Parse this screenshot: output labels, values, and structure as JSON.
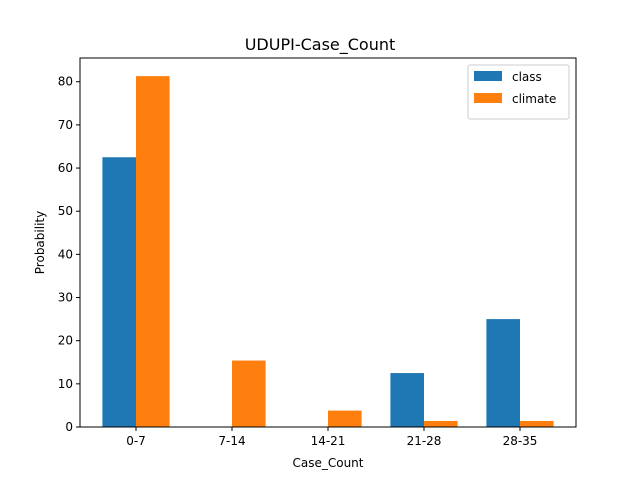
{
  "chart_data": {
    "type": "bar",
    "title": "UDUPI-Case_Count",
    "xlabel": "Case_Count",
    "ylabel": "Probability",
    "categories": [
      "0-7",
      "7-14",
      "14-21",
      "21-28",
      "28-35"
    ],
    "series": [
      {
        "name": "class",
        "values": [
          62.5,
          0,
          0,
          12.5,
          25.0
        ],
        "color": "#1f77b4"
      },
      {
        "name": "climate",
        "values": [
          81.3,
          15.4,
          3.8,
          1.4,
          1.4
        ],
        "color": "#ff7f0e"
      }
    ],
    "ylim": [
      0,
      85.5
    ],
    "yticks": [
      0,
      10,
      20,
      30,
      40,
      50,
      60,
      70,
      80
    ],
    "grid": false,
    "legend_position": "top-right"
  }
}
